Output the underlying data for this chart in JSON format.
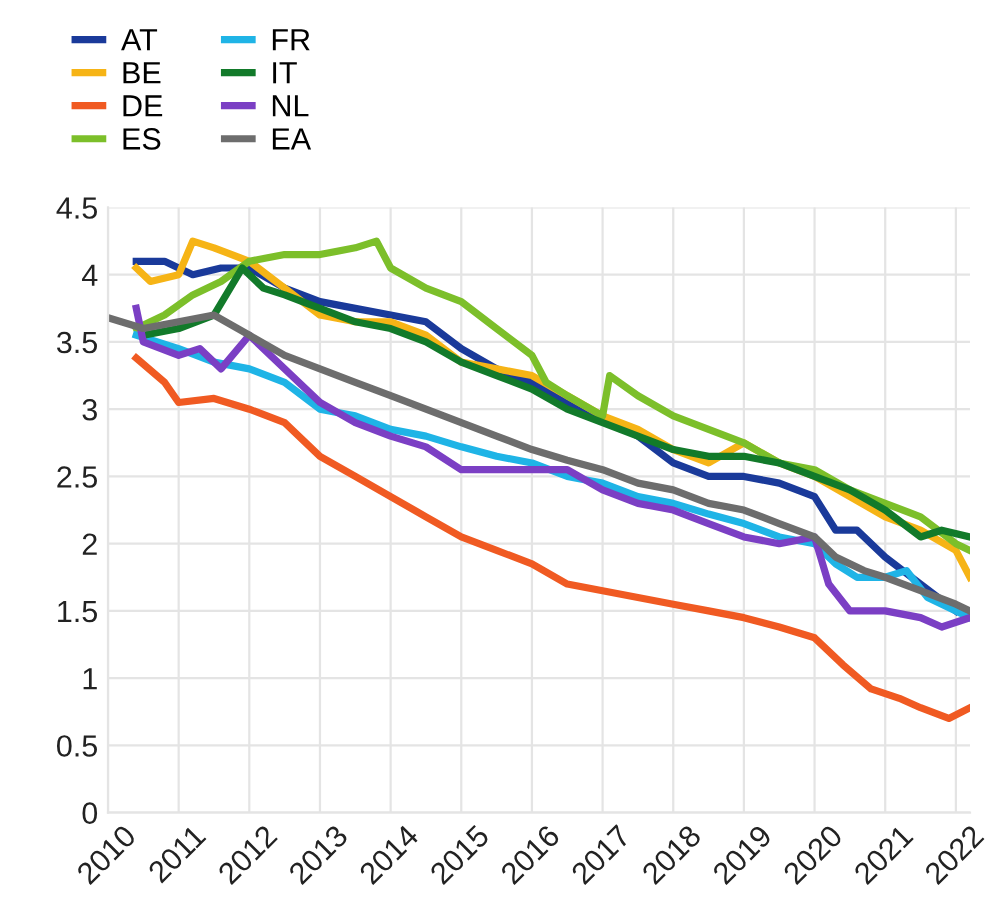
{
  "chart_data": {
    "type": "line",
    "xlim": [
      2010,
      2022.2
    ],
    "xticks": [
      2010,
      2011,
      2012,
      2013,
      2014,
      2015,
      2016,
      2017,
      2018,
      2019,
      2020,
      2021,
      2022
    ],
    "ylim": [
      0,
      4.5
    ],
    "yticks": [
      0,
      0.5,
      1,
      1.5,
      2,
      2.5,
      3,
      3.5,
      4,
      4.5
    ],
    "grid": true,
    "legend": "top left",
    "marker": "none",
    "line_style": "solid",
    "series": [
      {
        "name": "AT",
        "color": "#1a3a9a",
        "x": [
          2010.4,
          2010.8,
          2011.2,
          2011.6,
          2012,
          2012.5,
          2013,
          2013.5,
          2014,
          2014.5,
          2015,
          2015.5,
          2016,
          2016.5,
          2017,
          2017.5,
          2018,
          2018.5,
          2019,
          2019.5,
          2020,
          2020.3,
          2020.6,
          2021,
          2021.5,
          2022
        ],
        "values": [
          4.1,
          4.1,
          4.0,
          4.05,
          4.05,
          3.9,
          3.8,
          3.75,
          3.7,
          3.65,
          3.45,
          3.3,
          3.2,
          3.05,
          2.95,
          2.8,
          2.6,
          2.5,
          2.5,
          2.45,
          2.35,
          2.1,
          2.1,
          1.9,
          1.7,
          1.5
        ]
      },
      {
        "name": "BE",
        "color": "#f6b416",
        "x": [
          2010.4,
          2010.6,
          2011.0,
          2011.2,
          2011.5,
          2012,
          2012.5,
          2013,
          2013.5,
          2014,
          2014.5,
          2015,
          2015.5,
          2016,
          2016.5,
          2017,
          2017.5,
          2018,
          2018.5,
          2019,
          2019.5,
          2020,
          2020.5,
          2021,
          2021.5,
          2022,
          2022.2
        ],
        "values": [
          4.05,
          3.95,
          4.0,
          4.25,
          4.2,
          4.1,
          3.9,
          3.7,
          3.65,
          3.65,
          3.55,
          3.35,
          3.3,
          3.25,
          3.1,
          2.95,
          2.85,
          2.7,
          2.6,
          2.75,
          2.6,
          2.5,
          2.35,
          2.2,
          2.1,
          1.95,
          1.75
        ]
      },
      {
        "name": "DE",
        "color": "#f05a22",
        "x": [
          2010.4,
          2010.8,
          2011.0,
          2011.5,
          2012.0,
          2012.5,
          2013,
          2013.5,
          2014,
          2014.5,
          2015,
          2015.5,
          2016,
          2016.5,
          2017,
          2017.5,
          2018,
          2018.5,
          2019,
          2019.5,
          2020,
          2020.4,
          2020.8,
          2021.2,
          2021.5,
          2021.9,
          2022.2
        ],
        "values": [
          3.38,
          3.2,
          3.05,
          3.08,
          3.0,
          2.9,
          2.65,
          2.5,
          2.35,
          2.2,
          2.05,
          1.95,
          1.85,
          1.7,
          1.65,
          1.6,
          1.55,
          1.5,
          1.45,
          1.38,
          1.3,
          1.1,
          0.92,
          0.85,
          0.78,
          0.7,
          0.78
        ]
      },
      {
        "name": "ES",
        "color": "#7cbf2a",
        "x": [
          2010.4,
          2010.8,
          2011.2,
          2011.6,
          2012,
          2012.5,
          2013,
          2013.5,
          2013.8,
          2014,
          2014.5,
          2015,
          2015.5,
          2016,
          2016.2,
          2016.5,
          2017,
          2017.1,
          2017.5,
          2018,
          2018.5,
          2019,
          2019.5,
          2020,
          2020.5,
          2021,
          2021.5,
          2022,
          2022.2
        ],
        "values": [
          3.6,
          3.7,
          3.85,
          3.95,
          4.1,
          4.15,
          4.15,
          4.2,
          4.25,
          4.05,
          3.9,
          3.8,
          3.6,
          3.4,
          3.2,
          3.1,
          2.95,
          3.25,
          3.1,
          2.95,
          2.85,
          2.75,
          2.6,
          2.55,
          2.4,
          2.3,
          2.2,
          2.0,
          1.95
        ]
      },
      {
        "name": "FR",
        "color": "#1fb4e6",
        "x": [
          2010.4,
          2011,
          2011.5,
          2012,
          2012.5,
          2013,
          2013.5,
          2014,
          2014.5,
          2015,
          2015.5,
          2016,
          2016.5,
          2017,
          2017.5,
          2018,
          2018.5,
          2019,
          2019.5,
          2020,
          2020.3,
          2020.6,
          2021,
          2021.3,
          2021.6,
          2022,
          2022.2
        ],
        "values": [
          3.55,
          3.45,
          3.35,
          3.3,
          3.2,
          3.0,
          2.95,
          2.85,
          2.8,
          2.72,
          2.65,
          2.6,
          2.5,
          2.45,
          2.35,
          2.3,
          2.22,
          2.15,
          2.05,
          2.0,
          1.85,
          1.75,
          1.75,
          1.8,
          1.6,
          1.5,
          1.45
        ]
      },
      {
        "name": "IT",
        "color": "#127a2a",
        "x": [
          2010.5,
          2011,
          2011.5,
          2011.9,
          2012.2,
          2012.5,
          2013,
          2013.5,
          2014,
          2014.5,
          2015,
          2015.5,
          2016,
          2016.5,
          2017,
          2017.5,
          2018,
          2018.5,
          2019,
          2019.5,
          2020,
          2020.5,
          2021,
          2021.5,
          2021.8,
          2022.2
        ],
        "values": [
          3.55,
          3.6,
          3.7,
          4.05,
          3.9,
          3.85,
          3.75,
          3.65,
          3.6,
          3.5,
          3.35,
          3.25,
          3.15,
          3.0,
          2.9,
          2.8,
          2.7,
          2.65,
          2.65,
          2.6,
          2.5,
          2.4,
          2.25,
          2.05,
          2.1,
          2.05
        ]
      },
      {
        "name": "NL",
        "color": "#7b3fc4",
        "x": [
          2010.4,
          2010.5,
          2011,
          2011.3,
          2011.6,
          2012,
          2012.5,
          2013,
          2013.5,
          2014,
          2014.5,
          2015,
          2015.5,
          2016,
          2016.5,
          2017,
          2017.5,
          2018,
          2018.5,
          2019,
          2019.5,
          2020,
          2020.2,
          2020.5,
          2021,
          2021.5,
          2021.8,
          2022.2
        ],
        "values": [
          3.75,
          3.5,
          3.4,
          3.45,
          3.3,
          3.55,
          3.3,
          3.05,
          2.9,
          2.8,
          2.72,
          2.55,
          2.55,
          2.55,
          2.55,
          2.4,
          2.3,
          2.25,
          2.15,
          2.05,
          2.0,
          2.05,
          1.7,
          1.5,
          1.5,
          1.45,
          1.38,
          1.45
        ]
      },
      {
        "name": "EA",
        "color": "#6d6d6d",
        "x": [
          2010,
          2010.5,
          2011,
          2011.5,
          2012,
          2012.5,
          2013,
          2013.5,
          2014,
          2014.5,
          2015,
          2015.5,
          2016,
          2016.5,
          2017,
          2017.5,
          2018,
          2018.5,
          2019,
          2019.5,
          2020,
          2020.3,
          2020.7,
          2021,
          2021.5,
          2022,
          2022.2
        ],
        "values": [
          3.68,
          3.6,
          3.65,
          3.7,
          3.55,
          3.4,
          3.3,
          3.2,
          3.1,
          3.0,
          2.9,
          2.8,
          2.7,
          2.62,
          2.55,
          2.45,
          2.4,
          2.3,
          2.25,
          2.15,
          2.05,
          1.9,
          1.8,
          1.75,
          1.65,
          1.55,
          1.5
        ]
      }
    ]
  }
}
